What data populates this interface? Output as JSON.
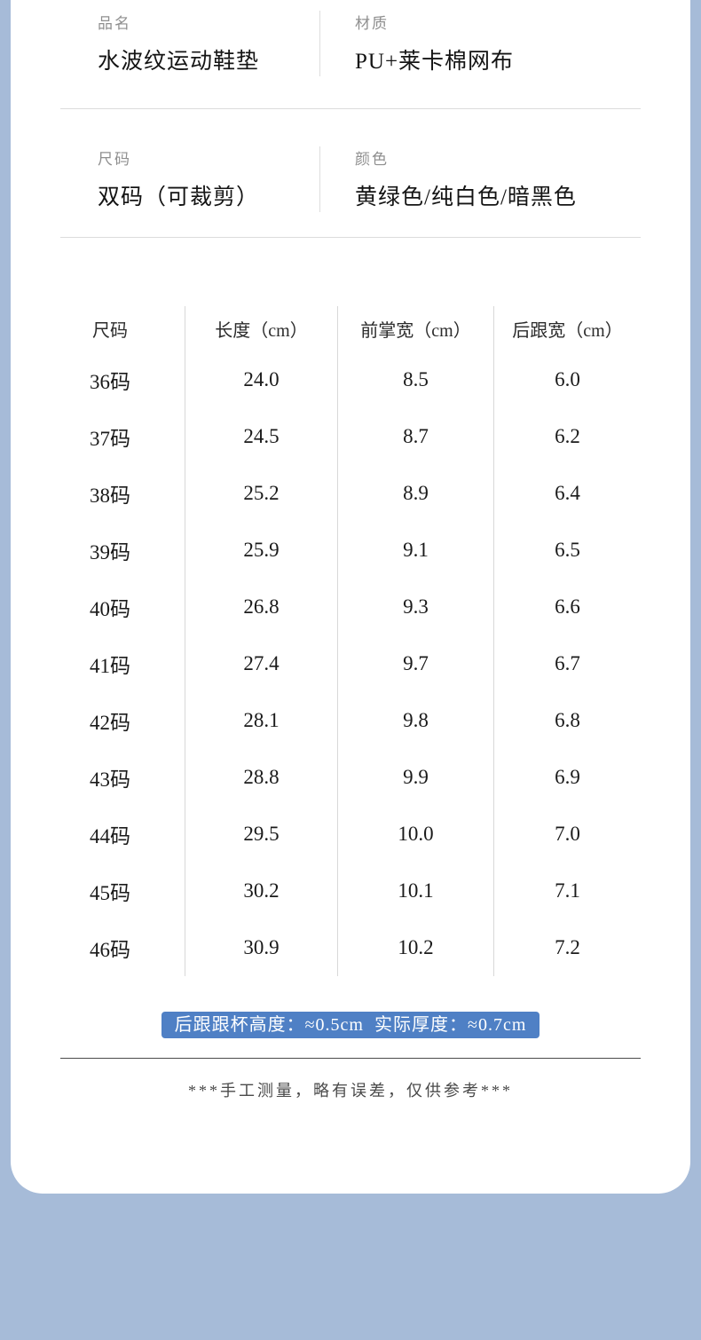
{
  "theme": {
    "outer_background": "#a6bbd8",
    "card_background": "#ffffff",
    "badge_background": "#4f80c5",
    "badge_text_color": "#ffffff"
  },
  "info": {
    "items": [
      {
        "label": "品名",
        "value": "水波纹运动鞋垫"
      },
      {
        "label": "材质",
        "value": "PU+莱卡棉网布"
      },
      {
        "label": "尺码",
        "value": "双码（可裁剪）"
      },
      {
        "label": "颜色",
        "value": "黄绿色/纯白色/暗黑色"
      }
    ]
  },
  "chart_data": {
    "type": "table",
    "columns": [
      "尺码",
      "长度（cm）",
      "前掌宽（cm）",
      "后跟宽（cm）"
    ],
    "rows": [
      [
        "36码",
        "24.0",
        "8.5",
        "6.0"
      ],
      [
        "37码",
        "24.5",
        "8.7",
        "6.2"
      ],
      [
        "38码",
        "25.2",
        "8.9",
        "6.4"
      ],
      [
        "39码",
        "25.9",
        "9.1",
        "6.5"
      ],
      [
        "40码",
        "26.8",
        "9.3",
        "6.6"
      ],
      [
        "41码",
        "27.4",
        "9.7",
        "6.7"
      ],
      [
        "42码",
        "28.1",
        "9.8",
        "6.8"
      ],
      [
        "43码",
        "28.8",
        "9.9",
        "6.9"
      ],
      [
        "44码",
        "29.5",
        "10.0",
        "7.0"
      ],
      [
        "45码",
        "30.2",
        "10.1",
        "7.1"
      ],
      [
        "46码",
        "30.9",
        "10.2",
        "7.2"
      ]
    ]
  },
  "notes": {
    "badge": "后跟跟杯高度：≈0.5cm  实际厚度：≈0.7cm",
    "footnote": "***手工测量，略有误差，仅供参考***"
  }
}
